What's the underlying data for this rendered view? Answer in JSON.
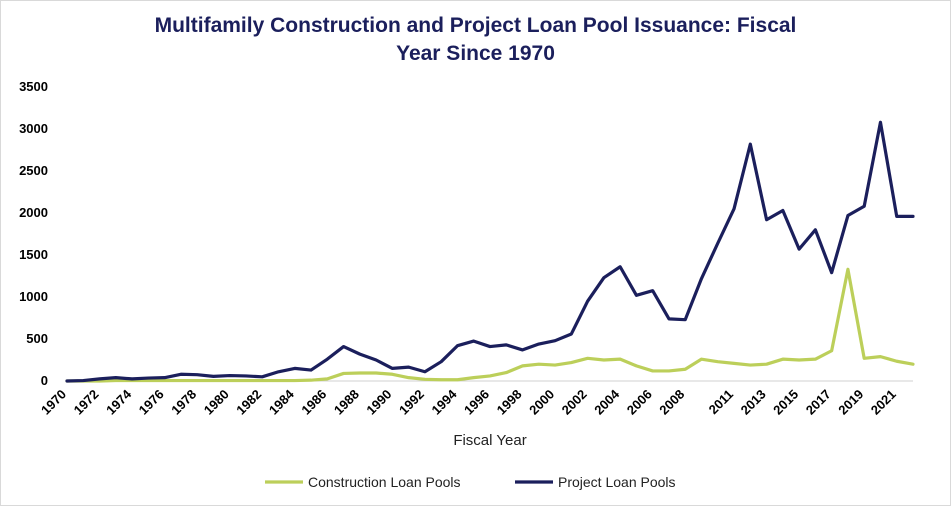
{
  "chart_data": {
    "type": "line",
    "title_lines": [
      "Multifamily Construction and Project Loan Pool Issuance: Fiscal",
      "Year Since 1970"
    ],
    "xlabel": "Fiscal Year",
    "ylabel": "",
    "ylim": [
      0,
      3500
    ],
    "yticks": [
      0,
      500,
      1000,
      1500,
      2000,
      2500,
      3000,
      3500
    ],
    "x": [
      1970,
      1971,
      1972,
      1973,
      1974,
      1975,
      1976,
      1977,
      1978,
      1979,
      1980,
      1981,
      1982,
      1983,
      1984,
      1985,
      1986,
      1987,
      1988,
      1989,
      1990,
      1991,
      1992,
      1993,
      1994,
      1995,
      1996,
      1997,
      1998,
      1999,
      2000,
      2001,
      2002,
      2003,
      2004,
      2005,
      2006,
      2007,
      2008,
      2009,
      2010,
      2011,
      2012,
      2013,
      2014,
      2015,
      2016,
      2017,
      2018,
      2019,
      2020,
      2021,
      2022
    ],
    "xtick_labels": [
      "1970",
      "1972",
      "1974",
      "1976",
      "1978",
      "1980",
      "1982",
      "1984",
      "1986",
      "1988",
      "1990",
      "1992",
      "1994",
      "1996",
      "1998",
      "2000",
      "2002",
      "2004",
      "2006",
      "2008",
      "2011",
      "2013",
      "2015",
      "2017",
      "2019",
      "2021"
    ],
    "grid": false,
    "legend_position": "bottom",
    "series": [
      {
        "name": "Construction Loan Pools",
        "color": "#bccf5a",
        "values": [
          0,
          0,
          0,
          5,
          5,
          5,
          5,
          5,
          5,
          5,
          5,
          5,
          5,
          5,
          5,
          10,
          25,
          90,
          95,
          95,
          80,
          40,
          20,
          15,
          15,
          40,
          60,
          100,
          180,
          200,
          190,
          220,
          270,
          250,
          260,
          180,
          120,
          120,
          140,
          260,
          230,
          210,
          190,
          200,
          260,
          250,
          260,
          360,
          1330,
          270,
          290,
          235,
          200
        ]
      },
      {
        "name": "Project Loan Pools",
        "color": "#1b1f5c",
        "values": [
          0,
          5,
          25,
          40,
          25,
          35,
          40,
          80,
          75,
          55,
          65,
          60,
          50,
          110,
          150,
          130,
          260,
          410,
          320,
          250,
          150,
          165,
          110,
          230,
          420,
          475,
          410,
          430,
          370,
          440,
          480,
          560,
          950,
          1230,
          1360,
          1020,
          1075,
          740,
          730,
          1220,
          1640,
          2050,
          2820,
          1920,
          2030,
          1570,
          1800,
          1290,
          1970,
          2080,
          3080,
          1960,
          1960
        ]
      }
    ]
  }
}
